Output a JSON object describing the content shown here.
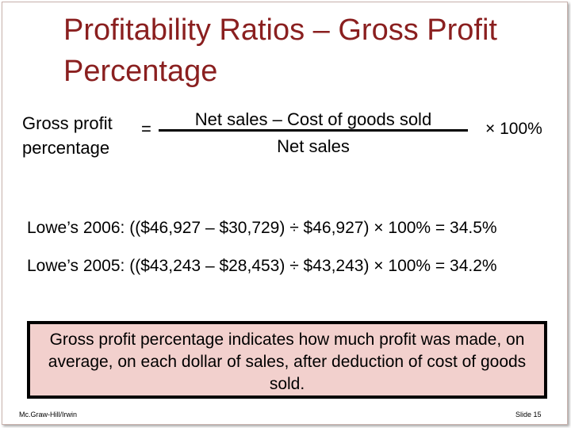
{
  "slide": {
    "title": "Profitability Ratios – Gross Profit Percentage",
    "formula": {
      "left_line1": "Gross profit",
      "left_line2": "percentage",
      "equals": "=",
      "numerator": "Net sales – Cost of goods sold",
      "denominator": "Net sales",
      "multiplier": "× 100%"
    },
    "examples": [
      "Lowe’s 2006:  (($46,927 – $30,729) ÷ $46,927) × 100% = 34.5%",
      "Lowe’s 2005:  (($43,243 – $28,453) ÷ $43,243) × 100% = 34.2%"
    ],
    "note": "Gross profit percentage indicates how much profit was made, on average, on each dollar of sales, after deduction of cost of goods sold.",
    "footer_left": "Mc.Graw-Hill/Irwin",
    "footer_right": "Slide 15"
  },
  "colors": {
    "title": "#8a1f1f",
    "note_background": "#f2d0cd",
    "note_border": "#000000"
  }
}
